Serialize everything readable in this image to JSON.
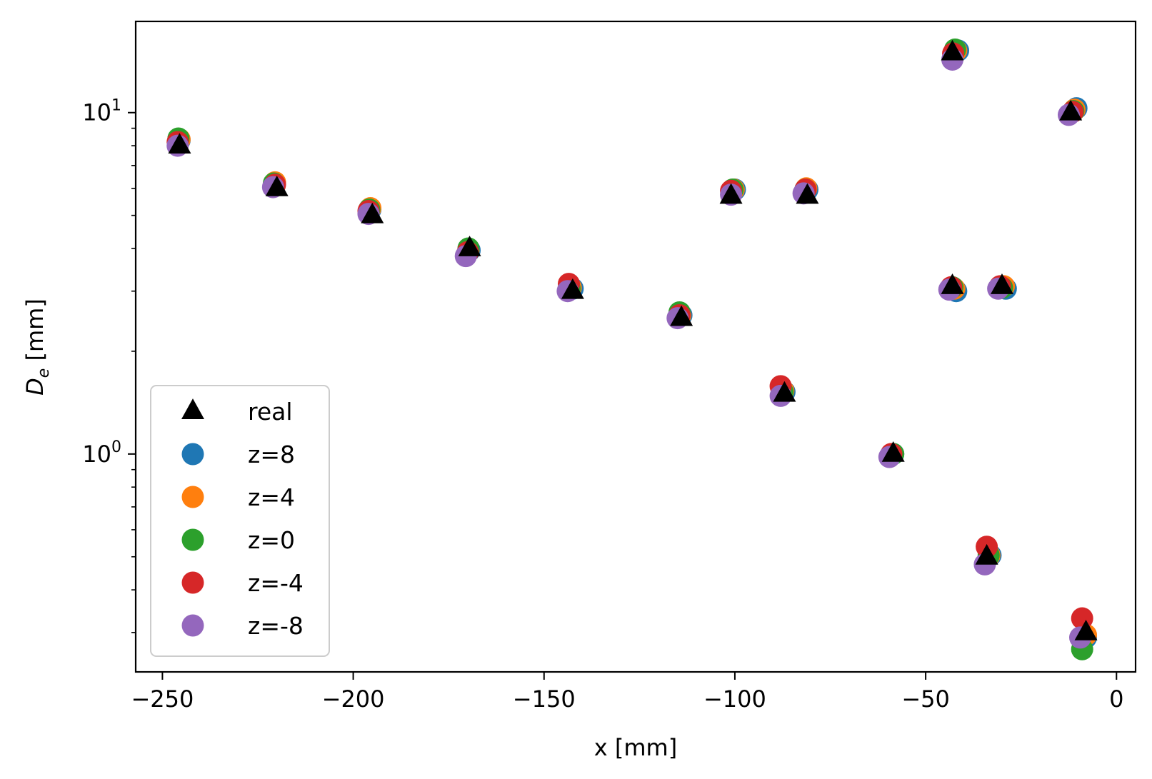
{
  "chart_data": {
    "type": "scatter",
    "xlabel": "x [mm]",
    "ylabel_main": "D",
    "ylabel_sub": "e",
    "ylabel_unit": " [mm]",
    "xlim": [
      -257,
      5
    ],
    "ylim": [
      0.23,
      18.5
    ],
    "y_scale": "log",
    "grid": false,
    "legend_position": "lower-left",
    "x_ticks": [
      {
        "value": -250,
        "label": "−250"
      },
      {
        "value": -200,
        "label": "−200"
      },
      {
        "value": -150,
        "label": "−150"
      },
      {
        "value": -100,
        "label": "−100"
      },
      {
        "value": -50,
        "label": "−50"
      },
      {
        "value": 0,
        "label": "0"
      }
    ],
    "y_ticks": [
      {
        "value": 1,
        "base": "10",
        "exp": "0"
      },
      {
        "value": 10,
        "base": "10",
        "exp": "1"
      }
    ],
    "y_minor_ticks": [
      0.3,
      0.4,
      0.5,
      0.6,
      0.7,
      0.8,
      0.9,
      2,
      3,
      4,
      5,
      6,
      7,
      8,
      9
    ],
    "series": [
      {
        "name": "z=8",
        "marker": "circle",
        "color": "#1f77b4",
        "points": [
          {
            "x": -245.5,
            "y": 8.3
          },
          {
            "x": -220.5,
            "y": 6.2
          },
          {
            "x": -195.5,
            "y": 5.2
          },
          {
            "x": -169.5,
            "y": 3.95
          },
          {
            "x": -142.5,
            "y": 3.05
          },
          {
            "x": -114,
            "y": 2.55
          },
          {
            "x": -100,
            "y": 5.95
          },
          {
            "x": -81,
            "y": 5.95
          },
          {
            "x": -87,
            "y": 1.52
          },
          {
            "x": -58.5,
            "y": 1.0
          },
          {
            "x": -41.5,
            "y": 15.2
          },
          {
            "x": -42,
            "y": 3.0
          },
          {
            "x": -29,
            "y": 3.05
          },
          {
            "x": -33,
            "y": 0.505
          },
          {
            "x": -10.5,
            "y": 10.3
          },
          {
            "x": -8,
            "y": 0.29
          }
        ]
      },
      {
        "name": "z=4",
        "marker": "circle",
        "color": "#ff7f0e",
        "points": [
          {
            "x": -245.5,
            "y": 8.35
          },
          {
            "x": -220.5,
            "y": 6.25
          },
          {
            "x": -195.5,
            "y": 5.25
          },
          {
            "x": -169.8,
            "y": 3.95
          },
          {
            "x": -143,
            "y": 3.07
          },
          {
            "x": -114.3,
            "y": 2.55
          },
          {
            "x": -100.3,
            "y": 5.95
          },
          {
            "x": -81.3,
            "y": 6.0
          },
          {
            "x": -87.3,
            "y": 1.53
          },
          {
            "x": -58.8,
            "y": 1.0
          },
          {
            "x": -42,
            "y": 15.2
          },
          {
            "x": -42.5,
            "y": 3.05
          },
          {
            "x": -29.5,
            "y": 3.1
          },
          {
            "x": -33.3,
            "y": 0.505
          },
          {
            "x": -11,
            "y": 10.2
          },
          {
            "x": -8,
            "y": 0.295
          }
        ]
      },
      {
        "name": "z=0",
        "marker": "circle",
        "color": "#2ca02c",
        "points": [
          {
            "x": -245.8,
            "y": 8.4
          },
          {
            "x": -220.8,
            "y": 6.2
          },
          {
            "x": -195.8,
            "y": 5.2
          },
          {
            "x": -169.8,
            "y": 4.0
          },
          {
            "x": -143.3,
            "y": 3.05
          },
          {
            "x": -114.5,
            "y": 2.6
          },
          {
            "x": -100.6,
            "y": 5.95
          },
          {
            "x": -81.5,
            "y": 5.95
          },
          {
            "x": -87.5,
            "y": 1.52
          },
          {
            "x": -58.5,
            "y": 1.0
          },
          {
            "x": -42.3,
            "y": 15.3
          },
          {
            "x": -43,
            "y": 3.08
          },
          {
            "x": -30,
            "y": 3.07
          },
          {
            "x": -33.5,
            "y": 0.505
          },
          {
            "x": -11.3,
            "y": 10.1
          },
          {
            "x": -9,
            "y": 0.268
          }
        ]
      },
      {
        "name": "z=-4",
        "marker": "circle",
        "color": "#d62728",
        "points": [
          {
            "x": -246,
            "y": 8.2
          },
          {
            "x": -220.5,
            "y": 6.15
          },
          {
            "x": -196,
            "y": 5.15
          },
          {
            "x": -170,
            "y": 3.9
          },
          {
            "x": -143.5,
            "y": 3.15
          },
          {
            "x": -114.5,
            "y": 2.55
          },
          {
            "x": -101,
            "y": 5.9
          },
          {
            "x": -81.5,
            "y": 5.95
          },
          {
            "x": -88,
            "y": 1.58
          },
          {
            "x": -59,
            "y": 1.0
          },
          {
            "x": -42.8,
            "y": 14.9
          },
          {
            "x": -43.3,
            "y": 3.08
          },
          {
            "x": -30.5,
            "y": 3.1
          },
          {
            "x": -34,
            "y": 0.535
          },
          {
            "x": -11.5,
            "y": 10.05
          },
          {
            "x": -9,
            "y": 0.33
          }
        ]
      },
      {
        "name": "z=-8",
        "marker": "circle",
        "color": "#9467bd",
        "points": [
          {
            "x": -246,
            "y": 8.0
          },
          {
            "x": -221,
            "y": 6.05
          },
          {
            "x": -196,
            "y": 5.05
          },
          {
            "x": -170.5,
            "y": 3.8
          },
          {
            "x": -143.8,
            "y": 3.0
          },
          {
            "x": -115,
            "y": 2.5
          },
          {
            "x": -101,
            "y": 5.75
          },
          {
            "x": -82,
            "y": 5.8
          },
          {
            "x": -88,
            "y": 1.48
          },
          {
            "x": -59.5,
            "y": 0.98
          },
          {
            "x": -43,
            "y": 14.3
          },
          {
            "x": -43.8,
            "y": 3.03
          },
          {
            "x": -31,
            "y": 3.05
          },
          {
            "x": -34.5,
            "y": 0.475
          },
          {
            "x": -12.5,
            "y": 9.85
          },
          {
            "x": -9.5,
            "y": 0.29
          }
        ]
      },
      {
        "name": "real",
        "marker": "triangle",
        "color": "#000000",
        "points": [
          {
            "x": -245.5,
            "y": 8.0
          },
          {
            "x": -220,
            "y": 6.0
          },
          {
            "x": -195,
            "y": 5.0
          },
          {
            "x": -169.5,
            "y": 4.0
          },
          {
            "x": -142.5,
            "y": 3.0
          },
          {
            "x": -114,
            "y": 2.5
          },
          {
            "x": -101,
            "y": 5.7
          },
          {
            "x": -81,
            "y": 5.7
          },
          {
            "x": -87,
            "y": 1.5
          },
          {
            "x": -58.5,
            "y": 1.0
          },
          {
            "x": -43,
            "y": 15.0
          },
          {
            "x": -43,
            "y": 3.1
          },
          {
            "x": -30,
            "y": 3.1
          },
          {
            "x": -34,
            "y": 0.5
          },
          {
            "x": -12,
            "y": 10.0
          },
          {
            "x": -8,
            "y": 0.3
          }
        ]
      }
    ],
    "legend": [
      {
        "label": "real",
        "marker": "triangle",
        "color": "#000000"
      },
      {
        "label": "z=8",
        "marker": "circle",
        "color": "#1f77b4"
      },
      {
        "label": "z=4",
        "marker": "circle",
        "color": "#ff7f0e"
      },
      {
        "label": "z=0",
        "marker": "circle",
        "color": "#2ca02c"
      },
      {
        "label": "z=-4",
        "marker": "circle",
        "color": "#d62728"
      },
      {
        "label": "z=-8",
        "marker": "circle",
        "color": "#9467bd"
      }
    ]
  }
}
